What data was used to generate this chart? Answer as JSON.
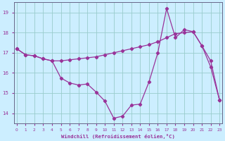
{
  "xlabel": "Windchill (Refroidissement éolien,°C)",
  "background_color": "#cceeff",
  "line_color": "#993399",
  "grid_color": "#99cccc",
  "series1_y": [
    17.2,
    16.9,
    16.85,
    16.7,
    16.6,
    15.75,
    15.5,
    15.4,
    15.45,
    15.05,
    14.6,
    13.75,
    13.85,
    14.4,
    14.45,
    15.55,
    17.0,
    19.2,
    17.75,
    18.15,
    18.05,
    17.35,
    16.6,
    14.65
  ],
  "series2_y": [
    17.2,
    16.9,
    16.85,
    16.7,
    16.6,
    16.6,
    16.65,
    16.7,
    16.75,
    16.8,
    16.9,
    17.0,
    17.1,
    17.2,
    17.3,
    17.4,
    17.55,
    17.75,
    17.95,
    18.0,
    18.05,
    17.35,
    16.3,
    14.65
  ],
  "xlim": [
    0,
    23
  ],
  "ylim": [
    13.5,
    19.5
  ],
  "yticks": [
    14,
    15,
    16,
    17,
    18,
    19
  ],
  "xticks": [
    0,
    1,
    2,
    3,
    4,
    5,
    6,
    7,
    8,
    9,
    10,
    11,
    12,
    13,
    14,
    15,
    16,
    17,
    18,
    19,
    20,
    21,
    22,
    23
  ]
}
